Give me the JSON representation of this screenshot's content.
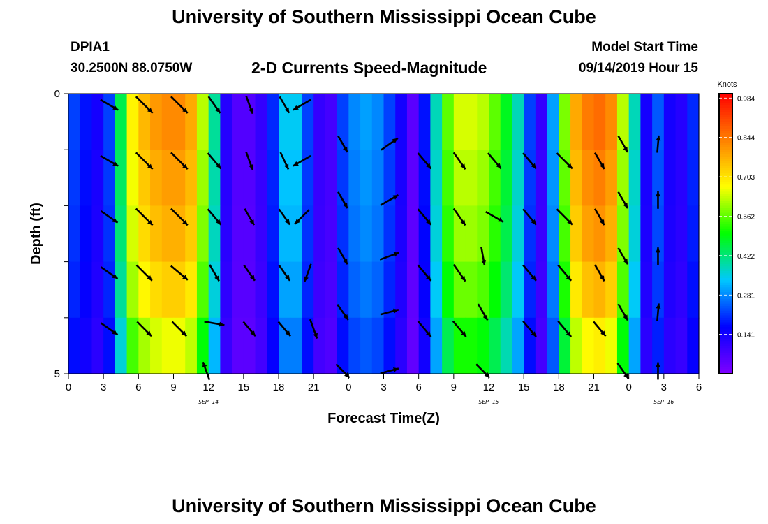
{
  "header": {
    "title": "University of Southern Mississippi Ocean Cube",
    "station": "DPIA1",
    "coordinates": "30.2500N 88.0750W",
    "chart_title": "2-D Currents Speed-Magnitude",
    "model_start_label": "Model Start Time",
    "model_start_value": "09/14/2019 Hour 15"
  },
  "footer": {
    "title": "University of Southern Mississippi Ocean Cube"
  },
  "chart_data": {
    "type": "heatmap",
    "title": "2-D Currents Speed-Magnitude",
    "xlabel": "Forecast Time(Z)",
    "ylabel": "Depth (ft)",
    "x_range_hours": [
      0,
      54
    ],
    "y_range_ft": [
      0,
      5
    ],
    "x_tick_labels": [
      "0",
      "3",
      "6",
      "9",
      "12",
      "15",
      "18",
      "21",
      "0",
      "3",
      "6",
      "9",
      "12",
      "15",
      "18",
      "21",
      "0",
      "3",
      "6"
    ],
    "y_tick_labels": [
      "0",
      "5"
    ],
    "date_labels": [
      {
        "text": "SEP 14",
        "hour": 12
      },
      {
        "text": "SEP 15",
        "hour": 36
      },
      {
        "text": "SEP 16",
        "hour": 51
      }
    ],
    "colorbar": {
      "unit": "Knots",
      "tick_labels": [
        "0.984",
        "0.844",
        "0.703",
        "0.562",
        "0.422",
        "0.281",
        "0.141"
      ],
      "tick_values": [
        0.984,
        0.844,
        0.703,
        0.562,
        0.422,
        0.281,
        0.141
      ],
      "range": [
        0,
        1.0
      ],
      "colors": [
        "#8000ff",
        "#0000ff",
        "#00c8ff",
        "#00ff00",
        "#ffff00",
        "#ff8000",
        "#ff0000"
      ]
    },
    "depth_layers": 5,
    "time_columns": 54,
    "speed_profile_surface": [
      0.22,
      0.18,
      0.14,
      0.22,
      0.45,
      0.68,
      0.76,
      0.8,
      0.82,
      0.82,
      0.78,
      0.62,
      0.4,
      0.12,
      0.06,
      0.06,
      0.1,
      0.2,
      0.34,
      0.34,
      0.22,
      0.1,
      0.08,
      0.22,
      0.28,
      0.3,
      0.28,
      0.22,
      0.14,
      0.05,
      0.18,
      0.38,
      0.56,
      0.64,
      0.64,
      0.62,
      0.56,
      0.48,
      0.38,
      0.22,
      0.1,
      0.3,
      0.58,
      0.78,
      0.84,
      0.86,
      0.82,
      0.62,
      0.38,
      0.14,
      0.24,
      0.14,
      0.12,
      0.2
    ],
    "depth_factors": [
      1.0,
      0.97,
      0.94,
      0.89,
      0.8
    ],
    "current_vectors": [
      {
        "hour": 3.5,
        "depth": 0.2,
        "dir_deg": 120,
        "speed": 0.6
      },
      {
        "hour": 6.5,
        "depth": 0.2,
        "dir_deg": 135,
        "speed": 0.8
      },
      {
        "hour": 9.5,
        "depth": 0.2,
        "dir_deg": 135,
        "speed": 0.8
      },
      {
        "hour": 12.5,
        "depth": 0.2,
        "dir_deg": 145,
        "speed": 0.6
      },
      {
        "hour": 15.5,
        "depth": 0.2,
        "dir_deg": 160,
        "speed": 0.5
      },
      {
        "hour": 18.5,
        "depth": 0.2,
        "dir_deg": 150,
        "speed": 0.5
      },
      {
        "hour": 20,
        "depth": 0.2,
        "dir_deg": 240,
        "speed": 0.6
      },
      {
        "hour": 3.5,
        "depth": 1.2,
        "dir_deg": 120,
        "speed": 0.6
      },
      {
        "hour": 6.5,
        "depth": 1.2,
        "dir_deg": 135,
        "speed": 0.8
      },
      {
        "hour": 9.5,
        "depth": 1.2,
        "dir_deg": 135,
        "speed": 0.8
      },
      {
        "hour": 12.5,
        "depth": 1.2,
        "dir_deg": 140,
        "speed": 0.6
      },
      {
        "hour": 15.5,
        "depth": 1.2,
        "dir_deg": 160,
        "speed": 0.5
      },
      {
        "hour": 18.5,
        "depth": 1.2,
        "dir_deg": 155,
        "speed": 0.5
      },
      {
        "hour": 20,
        "depth": 1.2,
        "dir_deg": 240,
        "speed": 0.6
      },
      {
        "hour": 23.5,
        "depth": 0.9,
        "dir_deg": 150,
        "speed": 0.5
      },
      {
        "hour": 27.5,
        "depth": 0.9,
        "dir_deg": 55,
        "speed": 0.6
      },
      {
        "hour": 30.5,
        "depth": 1.2,
        "dir_deg": 140,
        "speed": 0.6
      },
      {
        "hour": 33.5,
        "depth": 1.2,
        "dir_deg": 145,
        "speed": 0.6
      },
      {
        "hour": 36.5,
        "depth": 1.2,
        "dir_deg": 140,
        "speed": 0.6
      },
      {
        "hour": 39.5,
        "depth": 1.2,
        "dir_deg": 140,
        "speed": 0.6
      },
      {
        "hour": 42.5,
        "depth": 1.2,
        "dir_deg": 135,
        "speed": 0.7
      },
      {
        "hour": 45.5,
        "depth": 1.2,
        "dir_deg": 150,
        "speed": 0.5
      },
      {
        "hour": 47.5,
        "depth": 0.9,
        "dir_deg": 150,
        "speed": 0.5
      },
      {
        "hour": 50.5,
        "depth": 0.9,
        "dir_deg": 5,
        "speed": 0.4
      },
      {
        "hour": 3.5,
        "depth": 2.2,
        "dir_deg": 125,
        "speed": 0.6
      },
      {
        "hour": 6.5,
        "depth": 2.2,
        "dir_deg": 135,
        "speed": 0.8
      },
      {
        "hour": 9.5,
        "depth": 2.2,
        "dir_deg": 135,
        "speed": 0.8
      },
      {
        "hour": 12.5,
        "depth": 2.2,
        "dir_deg": 140,
        "speed": 0.6
      },
      {
        "hour": 15.5,
        "depth": 2.2,
        "dir_deg": 150,
        "speed": 0.5
      },
      {
        "hour": 18.5,
        "depth": 2.2,
        "dir_deg": 145,
        "speed": 0.5
      },
      {
        "hour": 20,
        "depth": 2.2,
        "dir_deg": 225,
        "speed": 0.6
      },
      {
        "hour": 23.5,
        "depth": 1.9,
        "dir_deg": 150,
        "speed": 0.5
      },
      {
        "hour": 27.5,
        "depth": 1.9,
        "dir_deg": 60,
        "speed": 0.6
      },
      {
        "hour": 30.5,
        "depth": 2.2,
        "dir_deg": 140,
        "speed": 0.6
      },
      {
        "hour": 33.5,
        "depth": 2.2,
        "dir_deg": 145,
        "speed": 0.6
      },
      {
        "hour": 36.5,
        "depth": 2.2,
        "dir_deg": 120,
        "speed": 0.6
      },
      {
        "hour": 39.5,
        "depth": 2.2,
        "dir_deg": 140,
        "speed": 0.6
      },
      {
        "hour": 42.5,
        "depth": 2.2,
        "dir_deg": 135,
        "speed": 0.7
      },
      {
        "hour": 45.5,
        "depth": 2.2,
        "dir_deg": 150,
        "speed": 0.5
      },
      {
        "hour": 47.5,
        "depth": 1.9,
        "dir_deg": 150,
        "speed": 0.5
      },
      {
        "hour": 50.5,
        "depth": 1.9,
        "dir_deg": 0,
        "speed": 0.4
      },
      {
        "hour": 3.5,
        "depth": 3.2,
        "dir_deg": 125,
        "speed": 0.6
      },
      {
        "hour": 6.5,
        "depth": 3.2,
        "dir_deg": 135,
        "speed": 0.7
      },
      {
        "hour": 9.5,
        "depth": 3.2,
        "dir_deg": 130,
        "speed": 0.7
      },
      {
        "hour": 12.5,
        "depth": 3.2,
        "dir_deg": 150,
        "speed": 0.5
      },
      {
        "hour": 15.5,
        "depth": 3.2,
        "dir_deg": 145,
        "speed": 0.5
      },
      {
        "hour": 18.5,
        "depth": 3.2,
        "dir_deg": 145,
        "speed": 0.5
      },
      {
        "hour": 20.5,
        "depth": 3.2,
        "dir_deg": 200,
        "speed": 0.5
      },
      {
        "hour": 23.5,
        "depth": 2.9,
        "dir_deg": 150,
        "speed": 0.5
      },
      {
        "hour": 27.5,
        "depth": 2.9,
        "dir_deg": 70,
        "speed": 0.6
      },
      {
        "hour": 30.5,
        "depth": 3.2,
        "dir_deg": 140,
        "speed": 0.6
      },
      {
        "hour": 33.5,
        "depth": 3.2,
        "dir_deg": 145,
        "speed": 0.6
      },
      {
        "hour": 35.5,
        "depth": 2.9,
        "dir_deg": 170,
        "speed": 0.5
      },
      {
        "hour": 45.5,
        "depth": 3.2,
        "dir_deg": 150,
        "speed": 0.5
      },
      {
        "hour": 39.5,
        "depth": 3.2,
        "dir_deg": 140,
        "speed": 0.6
      },
      {
        "hour": 42.5,
        "depth": 3.2,
        "dir_deg": 140,
        "speed": 0.6
      },
      {
        "hour": 47.5,
        "depth": 2.9,
        "dir_deg": 150,
        "speed": 0.5
      },
      {
        "hour": 50.5,
        "depth": 2.9,
        "dir_deg": 0,
        "speed": 0.4
      },
      {
        "hour": 3.5,
        "depth": 4.2,
        "dir_deg": 125,
        "speed": 0.6
      },
      {
        "hour": 6.5,
        "depth": 4.2,
        "dir_deg": 135,
        "speed": 0.6
      },
      {
        "hour": 9.5,
        "depth": 4.2,
        "dir_deg": 135,
        "speed": 0.6
      },
      {
        "hour": 12.5,
        "depth": 4.1,
        "dir_deg": 100,
        "speed": 0.6
      },
      {
        "hour": 15.5,
        "depth": 4.2,
        "dir_deg": 140,
        "speed": 0.5
      },
      {
        "hour": 18.5,
        "depth": 4.2,
        "dir_deg": 140,
        "speed": 0.5
      },
      {
        "hour": 21,
        "depth": 4.2,
        "dir_deg": 160,
        "speed": 0.6
      },
      {
        "hour": 23.5,
        "depth": 3.9,
        "dir_deg": 145,
        "speed": 0.5
      },
      {
        "hour": 27.5,
        "depth": 3.9,
        "dir_deg": 75,
        "speed": 0.5
      },
      {
        "hour": 30.5,
        "depth": 4.2,
        "dir_deg": 140,
        "speed": 0.6
      },
      {
        "hour": 33.5,
        "depth": 4.2,
        "dir_deg": 140,
        "speed": 0.6
      },
      {
        "hour": 35.5,
        "depth": 3.9,
        "dir_deg": 150,
        "speed": 0.5
      },
      {
        "hour": 39.5,
        "depth": 4.2,
        "dir_deg": 140,
        "speed": 0.6
      },
      {
        "hour": 42.5,
        "depth": 4.2,
        "dir_deg": 140,
        "speed": 0.6
      },
      {
        "hour": 45.5,
        "depth": 4.2,
        "dir_deg": 140,
        "speed": 0.5
      },
      {
        "hour": 47.5,
        "depth": 3.9,
        "dir_deg": 150,
        "speed": 0.5
      },
      {
        "hour": 50.5,
        "depth": 3.9,
        "dir_deg": 5,
        "speed": 0.4
      },
      {
        "hour": 11.8,
        "depth": 4.95,
        "dir_deg": 340,
        "speed": 0.5
      },
      {
        "hour": 23.5,
        "depth": 4.95,
        "dir_deg": 135,
        "speed": 0.5
      },
      {
        "hour": 27.5,
        "depth": 4.95,
        "dir_deg": 75,
        "speed": 0.5
      },
      {
        "hour": 35.5,
        "depth": 4.95,
        "dir_deg": 135,
        "speed": 0.5
      },
      {
        "hour": 47.5,
        "depth": 4.95,
        "dir_deg": 145,
        "speed": 0.5
      },
      {
        "hour": 50.5,
        "depth": 4.95,
        "dir_deg": 0,
        "speed": 0.4
      }
    ]
  }
}
